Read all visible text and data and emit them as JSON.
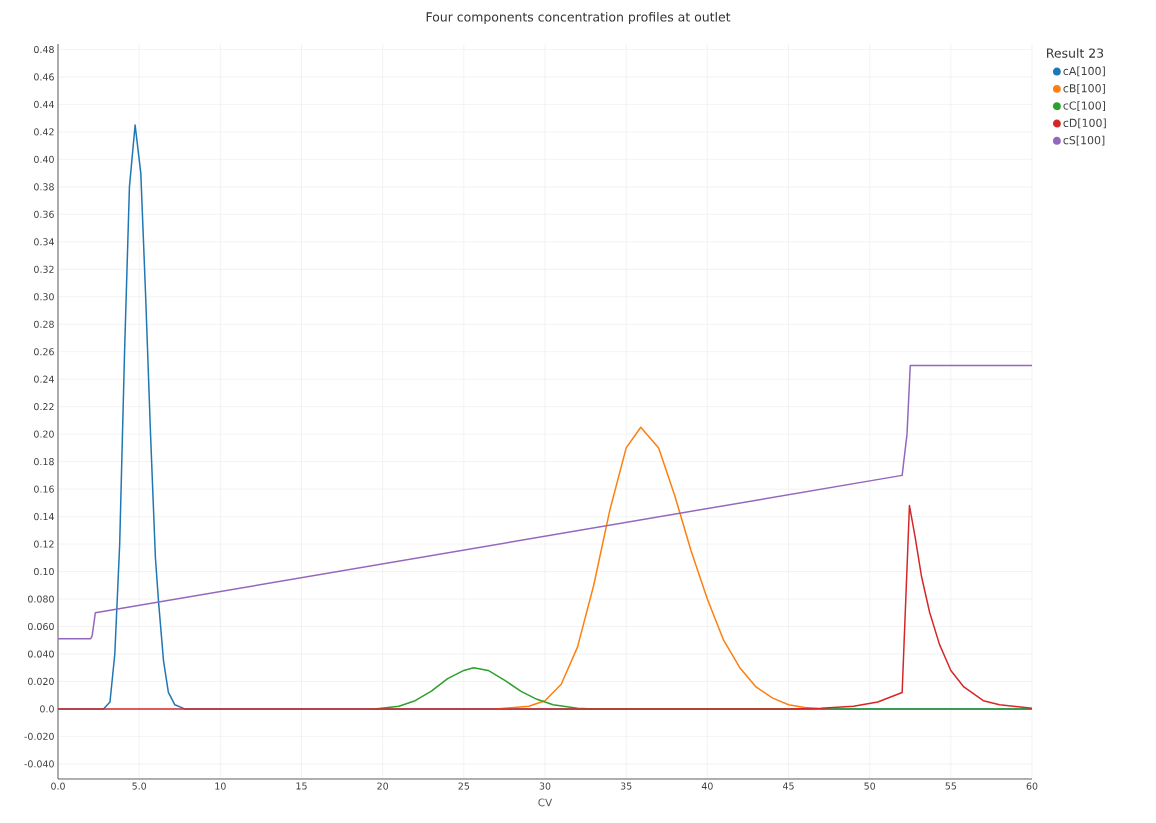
{
  "chart_data": {
    "type": "line",
    "title": "Four components concentration profiles at outlet",
    "xlabel": "CV",
    "legend_title": "Result 23",
    "legend": "top right",
    "grid": true,
    "marker": "none",
    "line_style": "solid",
    "xlim": [
      0,
      60
    ],
    "ylim": [
      -0.051,
      0.484
    ],
    "xticks": [
      {
        "value": 0,
        "label": "0.0"
      },
      {
        "value": 5,
        "label": "5.0"
      },
      10,
      15,
      20,
      25,
      30,
      35,
      40,
      45,
      50,
      55,
      60
    ],
    "yticks": [
      {
        "value": -0.04,
        "label": "-0.040"
      },
      {
        "value": -0.02,
        "label": "-0.020"
      },
      {
        "value": 0,
        "label": "0.0"
      },
      {
        "value": 0.02,
        "label": "0.020"
      },
      {
        "value": 0.04,
        "label": "0.040"
      },
      {
        "value": 0.06,
        "label": "0.060"
      },
      {
        "value": 0.08,
        "label": "0.080"
      },
      {
        "value": 0.1,
        "label": "0.10"
      },
      0.12,
      0.14,
      0.16,
      0.18,
      {
        "value": 0.2,
        "label": "0.20"
      },
      0.22,
      0.24,
      0.26,
      0.28,
      {
        "value": 0.3,
        "label": "0.30"
      },
      0.32,
      0.34,
      0.36,
      0.38,
      {
        "value": 0.4,
        "label": "0.40"
      },
      0.42,
      0.44,
      0.46,
      0.48
    ],
    "series": [
      {
        "name": "cA[100]",
        "color": "#1f77b4",
        "x": [
          0,
          2.8,
          3.2,
          3.5,
          3.8,
          4.1,
          4.4,
          4.75,
          5.1,
          5.4,
          5.7,
          6.0,
          6.2,
          6.5,
          6.8,
          7.2,
          7.8,
          60
        ],
        "values": [
          0,
          0,
          0.005,
          0.04,
          0.12,
          0.26,
          0.38,
          0.425,
          0.39,
          0.3,
          0.2,
          0.11,
          0.077,
          0.035,
          0.012,
          0.003,
          0,
          0
        ]
      },
      {
        "name": "cB[100]",
        "color": "#ff7f0e",
        "x": [
          27,
          29,
          30,
          31,
          32,
          33,
          34,
          35,
          35.9,
          37,
          38,
          39,
          40,
          41,
          42,
          43,
          44,
          45,
          46,
          47
        ],
        "values": [
          0,
          0.002,
          0.006,
          0.018,
          0.045,
          0.09,
          0.145,
          0.19,
          0.205,
          0.19,
          0.155,
          0.115,
          0.08,
          0.05,
          0.03,
          0.016,
          0.008,
          0.003,
          0.001,
          0
        ]
      },
      {
        "name": "cC[100]",
        "color": "#2ca02c",
        "x": [
          19.5,
          21,
          22,
          23,
          24,
          25,
          25.6,
          26.5,
          27.5,
          28.5,
          29.5,
          30.5,
          32,
          33,
          60
        ],
        "values": [
          0,
          0.002,
          0.006,
          0.013,
          0.022,
          0.028,
          0.03,
          0.028,
          0.021,
          0.013,
          0.007,
          0.003,
          0.0005,
          0,
          0
        ]
      },
      {
        "name": "cD[100]",
        "color": "#d62728",
        "x": [
          0,
          45,
          47,
          49,
          50.5,
          52,
          52.45,
          52.8,
          53.2,
          53.7,
          54.3,
          55,
          55.8,
          57,
          58,
          60
        ],
        "values": [
          0,
          0,
          0.0005,
          0.002,
          0.005,
          0.012,
          0.148,
          0.125,
          0.096,
          0.07,
          0.047,
          0.028,
          0.016,
          0.006,
          0.003,
          0.0005
        ]
      },
      {
        "name": "cS[100]",
        "color": "#9467bd",
        "x": [
          0,
          2.0,
          2.1,
          2.3,
          52.0,
          52.3,
          52.5,
          60
        ],
        "values": [
          0.051,
          0.051,
          0.053,
          0.07,
          0.17,
          0.2,
          0.25,
          0.25
        ]
      }
    ]
  }
}
